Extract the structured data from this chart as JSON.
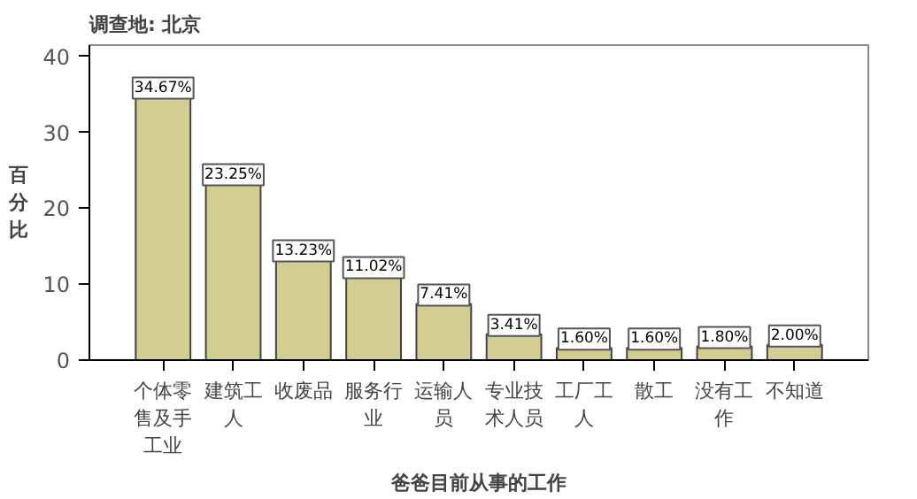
{
  "chart_data": {
    "type": "bar",
    "title": "调查地: 北京",
    "xlabel": "爸爸目前从事的工作",
    "ylabel": "百分比",
    "categories": [
      "个体零售及手工业",
      "建筑工人",
      "收废品",
      "服务行业",
      "运输人员",
      "专业技术人员",
      "工厂工人",
      "散工",
      "没有工作",
      "不知道"
    ],
    "values": [
      34.67,
      23.25,
      13.23,
      11.02,
      7.41,
      3.41,
      1.6,
      1.6,
      1.8,
      2.0
    ],
    "value_labels": [
      "34.67%",
      "23.25%",
      "13.23%",
      "11.02%",
      "7.41%",
      "3.41%",
      "1.60%",
      "1.60%",
      "1.80%",
      "2.00%"
    ],
    "color": "#d3cd91",
    "ylim": [
      0,
      41.5
    ],
    "yticks": [
      0,
      10,
      20,
      30,
      40
    ],
    "grid": false
  }
}
